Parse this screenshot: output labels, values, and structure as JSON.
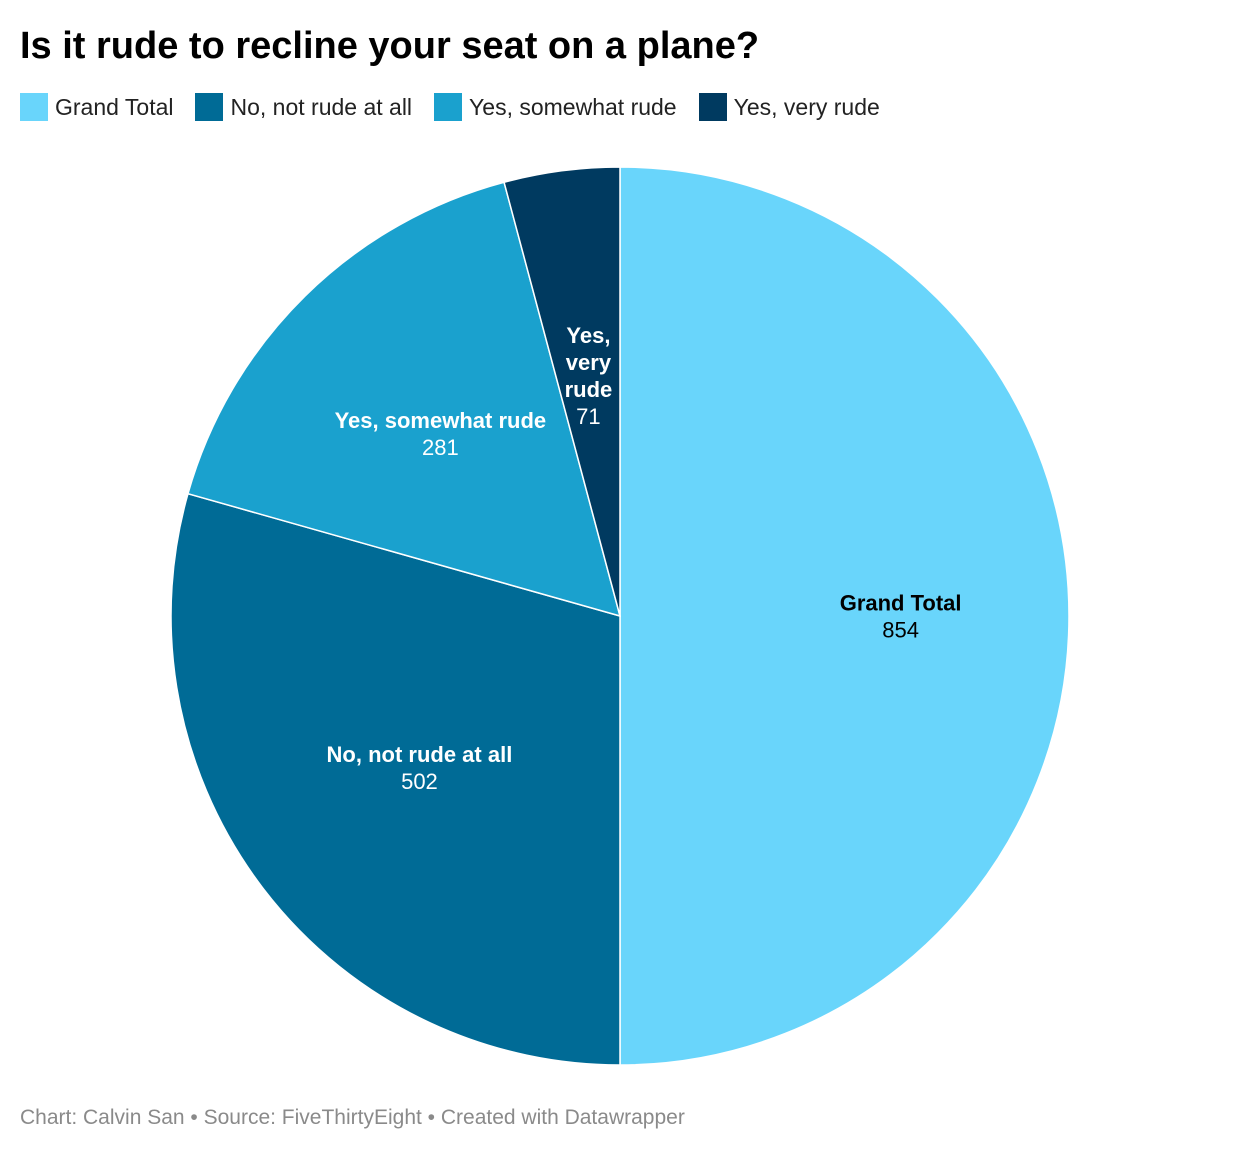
{
  "title": "Is it rude to recline your seat on a plane?",
  "footer": "Chart: Calvin San • Source: FiveThirtyEight • Created with Datawrapper",
  "chart_data": {
    "type": "pie",
    "title": "Is it rude to recline your seat on a plane?",
    "legend_placement": "top-left",
    "slices": [
      {
        "label": "Grand Total",
        "value": 854,
        "color": "#69d5fb",
        "label_lines": [
          "Grand Total"
        ],
        "text_color": "#000000"
      },
      {
        "label": "No, not rude at all",
        "value": 502,
        "color": "#006b96",
        "label_lines": [
          "No, not rude at all"
        ],
        "text_color": "#ffffff"
      },
      {
        "label": "Yes, somewhat rude",
        "value": 281,
        "color": "#1aa1ce",
        "label_lines": [
          "Yes, somewhat rude"
        ],
        "text_color": "#ffffff"
      },
      {
        "label": "Yes, very rude",
        "value": 71,
        "color": "#003a60",
        "label_lines": [
          "Yes,",
          "very",
          "rude"
        ],
        "text_color": "#ffffff"
      }
    ]
  }
}
